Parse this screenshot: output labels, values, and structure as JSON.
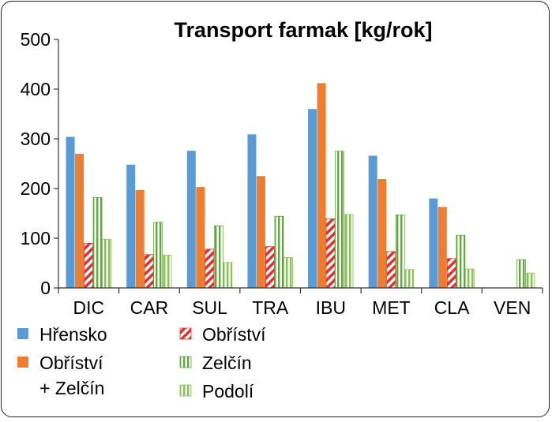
{
  "chart_data": {
    "type": "bar",
    "title": "Transport farmak [kg/rok]",
    "xlabel": "",
    "ylabel": "",
    "ylim": [
      0,
      500
    ],
    "yticks": [
      "0",
      "100",
      "200",
      "300",
      "400",
      "500"
    ],
    "grid": false,
    "legend_position": "bottom",
    "categories": [
      "DIC",
      "CAR",
      "SUL",
      "TRA",
      "IBU",
      "MET",
      "CLA",
      "VEN"
    ],
    "series": [
      {
        "name": "Hřensko",
        "color": "#5a9bd5",
        "pattern": "solid",
        "values": [
          304,
          248,
          276,
          309,
          360,
          266,
          180,
          0
        ]
      },
      {
        "name_lines": [
          "Obříství",
          "+ Zelčín"
        ],
        "color": "#ed7d31",
        "pattern": "solid",
        "values": [
          270,
          197,
          203,
          225,
          412,
          219,
          163,
          0
        ]
      },
      {
        "name": "Obříství",
        "color": "#e03030",
        "pattern": "diagonal-stripes",
        "values": [
          90,
          67,
          78,
          83,
          139,
          73,
          59,
          0
        ]
      },
      {
        "name": "Zelčín",
        "color": "#5fa83a",
        "pattern": "vertical-stripes",
        "values": [
          182,
          132,
          125,
          144,
          275,
          147,
          106,
          57
        ]
      },
      {
        "name": "Podolí",
        "color": "#8bbf5a",
        "pattern": "vertical-stripes-light",
        "values": [
          98,
          66,
          51,
          61,
          148,
          37,
          38,
          30
        ]
      }
    ]
  }
}
